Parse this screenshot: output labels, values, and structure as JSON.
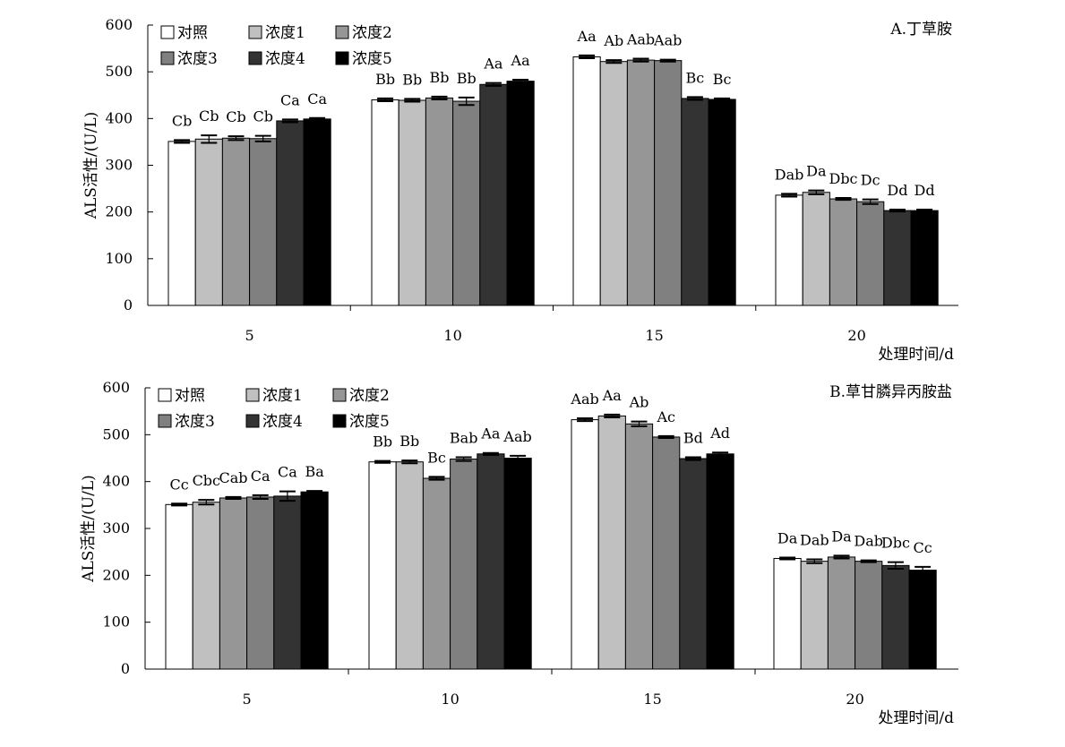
{
  "chart_data": [
    {
      "type": "bar",
      "title": "A.丁草胺",
      "xlabel": "处理时间/d",
      "ylabel": "ALS活性/(U/L)",
      "ylim": [
        0,
        600
      ],
      "yticks": [
        0,
        100,
        200,
        300,
        400,
        500,
        600
      ],
      "categories": [
        "5",
        "10",
        "15",
        "20"
      ],
      "legend_position": "top-left",
      "series": [
        {
          "name": "对照",
          "color": "#ffffff",
          "values": [
            351,
            440,
            532,
            236
          ],
          "errors": [
            3,
            3,
            3,
            3
          ],
          "labels": [
            "Cb",
            "Bb",
            "Aa",
            "Dab"
          ]
        },
        {
          "name": "浓度1",
          "color": "#c0c0c0",
          "values": [
            356,
            439,
            522,
            242
          ],
          "errors": [
            8,
            3,
            3,
            4
          ],
          "labels": [
            "Cb",
            "Bb",
            "Ab",
            "Da"
          ]
        },
        {
          "name": "浓度2",
          "color": "#969696",
          "values": [
            358,
            444,
            525,
            228
          ],
          "errors": [
            4,
            3,
            3,
            2
          ],
          "labels": [
            "Cb",
            "Bb",
            "Aab",
            "Dbc"
          ]
        },
        {
          "name": "浓度3",
          "color": "#808080",
          "values": [
            357,
            437,
            524,
            222
          ],
          "errors": [
            6,
            8,
            2,
            5
          ],
          "labels": [
            "Cb",
            "Bb",
            "Aab",
            "Dc"
          ]
        },
        {
          "name": "浓度4",
          "color": "#333333",
          "values": [
            395,
            473,
            443,
            203
          ],
          "errors": [
            3,
            3,
            3,
            2
          ],
          "labels": [
            "Ca",
            "Aa",
            "Bc",
            "Dd"
          ]
        },
        {
          "name": "浓度5",
          "color": "#000000",
          "values": [
            399,
            480,
            441,
            203
          ],
          "errors": [
            2,
            3,
            2,
            2
          ],
          "labels": [
            "Ca",
            "Aa",
            "Bc",
            "Dd"
          ]
        }
      ]
    },
    {
      "type": "bar",
      "title": "B.草甘膦异丙胺盐",
      "xlabel": "处理时间/d",
      "ylabel": "ALS活性/(U/L)",
      "ylim": [
        0,
        600
      ],
      "yticks": [
        0,
        100,
        200,
        300,
        400,
        500,
        600
      ],
      "categories": [
        "5",
        "10",
        "15",
        "20"
      ],
      "legend_position": "top-left",
      "series": [
        {
          "name": "对照",
          "color": "#ffffff",
          "values": [
            351,
            442,
            532,
            236
          ],
          "errors": [
            2,
            2,
            3,
            2
          ],
          "labels": [
            "Cc",
            "Bb",
            "Aab",
            "Da"
          ]
        },
        {
          "name": "浓度1",
          "color": "#c0c0c0",
          "values": [
            356,
            442,
            540,
            230
          ],
          "errors": [
            5,
            3,
            3,
            4
          ],
          "labels": [
            "Cbc",
            "Bb",
            "Aa",
            "Dab"
          ]
        },
        {
          "name": "浓度2",
          "color": "#969696",
          "values": [
            365,
            407,
            523,
            239
          ],
          "errors": [
            2,
            3,
            5,
            3
          ],
          "labels": [
            "Cab",
            "Bc",
            "Ab",
            "Da"
          ]
        },
        {
          "name": "浓度3",
          "color": "#808080",
          "values": [
            367,
            448,
            495,
            230
          ],
          "errors": [
            4,
            4,
            2,
            2
          ],
          "labels": [
            "Ca",
            "Bab",
            "Ac",
            "Dab"
          ]
        },
        {
          "name": "浓度4",
          "color": "#333333",
          "values": [
            369,
            459,
            449,
            221
          ],
          "errors": [
            10,
            2,
            3,
            7
          ],
          "labels": [
            "Ca",
            "Aa",
            "Bd",
            "Dbc"
          ]
        },
        {
          "name": "浓度5",
          "color": "#000000",
          "values": [
            378,
            450,
            459,
            211
          ],
          "errors": [
            2,
            5,
            3,
            7
          ],
          "labels": [
            "Ba",
            "Aab",
            "Ad",
            "Cc"
          ]
        }
      ]
    }
  ]
}
